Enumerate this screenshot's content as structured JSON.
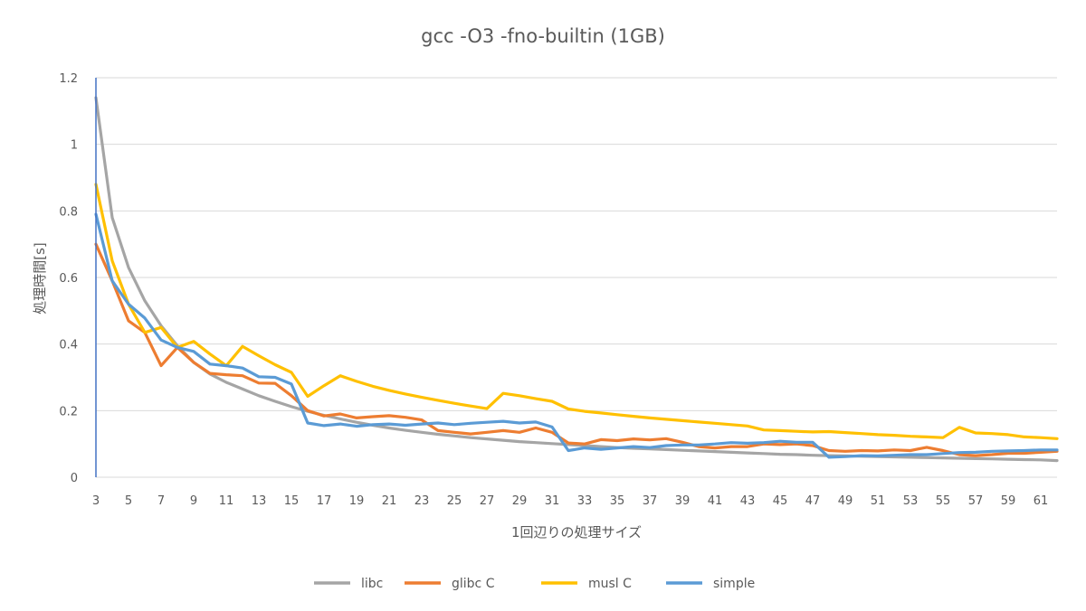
{
  "chart_data": {
    "type": "line",
    "title": "gcc -O3 -fno-builtin (1GB)",
    "xlabel": "1回辺りの処理サイズ",
    "ylabel": "処理時間[s]",
    "ylim": [
      0,
      1.2
    ],
    "yticks": [
      "0",
      "0.2",
      "0.4",
      "0.6",
      "0.8",
      "1",
      "1.2"
    ],
    "x": [
      3,
      4,
      5,
      6,
      7,
      8,
      9,
      10,
      11,
      12,
      13,
      14,
      15,
      16,
      17,
      18,
      19,
      20,
      21,
      22,
      23,
      24,
      25,
      26,
      27,
      28,
      29,
      30,
      31,
      32,
      33,
      34,
      35,
      36,
      37,
      38,
      39,
      40,
      41,
      42,
      43,
      44,
      45,
      46,
      47,
      48,
      49,
      50,
      51,
      52,
      53,
      54,
      55,
      56,
      57,
      58,
      59,
      60,
      61,
      62
    ],
    "xtick_labels": [
      "3",
      "5",
      "7",
      "9",
      "11",
      "13",
      "15",
      "17",
      "19",
      "21",
      "23",
      "25",
      "27",
      "29",
      "31",
      "33",
      "35",
      "37",
      "39",
      "41",
      "43",
      "45",
      "47",
      "49",
      "51",
      "53",
      "55",
      "57",
      "59",
      "61"
    ],
    "grid": true,
    "legend": "bottom",
    "series": [
      {
        "name": "libc",
        "color": "#a5a5a5",
        "values": [
          1.14,
          0.78,
          0.63,
          0.53,
          0.455,
          0.395,
          0.345,
          0.31,
          0.285,
          0.265,
          0.245,
          0.228,
          0.212,
          0.198,
          0.186,
          0.175,
          0.165,
          0.156,
          0.148,
          0.141,
          0.135,
          0.129,
          0.124,
          0.119,
          0.115,
          0.111,
          0.107,
          0.104,
          0.101,
          0.098,
          0.095,
          0.092,
          0.089,
          0.087,
          0.085,
          0.083,
          0.081,
          0.079,
          0.077,
          0.075,
          0.073,
          0.071,
          0.069,
          0.068,
          0.066,
          0.065,
          0.064,
          0.063,
          0.062,
          0.061,
          0.06,
          0.059,
          0.058,
          0.057,
          0.056,
          0.055,
          0.054,
          0.053,
          0.052,
          0.05
        ]
      },
      {
        "name": "glibc C",
        "color": "#ed7d31",
        "values": [
          0.7,
          0.59,
          0.47,
          0.435,
          0.335,
          0.39,
          0.345,
          0.312,
          0.308,
          0.305,
          0.283,
          0.282,
          0.245,
          0.2,
          0.184,
          0.19,
          0.178,
          0.182,
          0.185,
          0.18,
          0.172,
          0.14,
          0.135,
          0.13,
          0.135,
          0.14,
          0.135,
          0.148,
          0.135,
          0.103,
          0.1,
          0.113,
          0.11,
          0.115,
          0.112,
          0.116,
          0.105,
          0.092,
          0.088,
          0.092,
          0.092,
          0.1,
          0.098,
          0.1,
          0.095,
          0.08,
          0.078,
          0.08,
          0.079,
          0.082,
          0.08,
          0.09,
          0.08,
          0.068,
          0.065,
          0.068,
          0.072,
          0.072,
          0.075,
          0.078
        ]
      },
      {
        "name": "musl C",
        "color": "#ffc000",
        "values": [
          0.88,
          0.65,
          0.52,
          0.435,
          0.45,
          0.39,
          0.408,
          0.37,
          0.335,
          0.393,
          0.365,
          0.338,
          0.315,
          0.243,
          0.275,
          0.305,
          0.288,
          0.273,
          0.261,
          0.25,
          0.24,
          0.231,
          0.222,
          0.214,
          0.206,
          0.252,
          0.245,
          0.236,
          0.228,
          0.205,
          0.198,
          0.193,
          0.188,
          0.183,
          0.178,
          0.174,
          0.17,
          0.166,
          0.162,
          0.158,
          0.154,
          0.142,
          0.14,
          0.138,
          0.136,
          0.137,
          0.134,
          0.131,
          0.128,
          0.126,
          0.123,
          0.121,
          0.119,
          0.15,
          0.133,
          0.131,
          0.128,
          0.121,
          0.119,
          0.116
        ]
      },
      {
        "name": "simple",
        "color": "#5b9bd5",
        "values": [
          0.79,
          0.59,
          0.52,
          0.478,
          0.412,
          0.39,
          0.378,
          0.34,
          0.335,
          0.328,
          0.302,
          0.3,
          0.28,
          0.163,
          0.155,
          0.16,
          0.153,
          0.158,
          0.16,
          0.156,
          0.16,
          0.163,
          0.158,
          0.162,
          0.165,
          0.168,
          0.163,
          0.166,
          0.151,
          0.08,
          0.088,
          0.084,
          0.088,
          0.092,
          0.089,
          0.095,
          0.097,
          0.097,
          0.1,
          0.104,
          0.102,
          0.104,
          0.108,
          0.105,
          0.105,
          0.06,
          0.062,
          0.065,
          0.064,
          0.066,
          0.068,
          0.068,
          0.071,
          0.074,
          0.075,
          0.078,
          0.079,
          0.08,
          0.082,
          0.082
        ]
      }
    ]
  }
}
